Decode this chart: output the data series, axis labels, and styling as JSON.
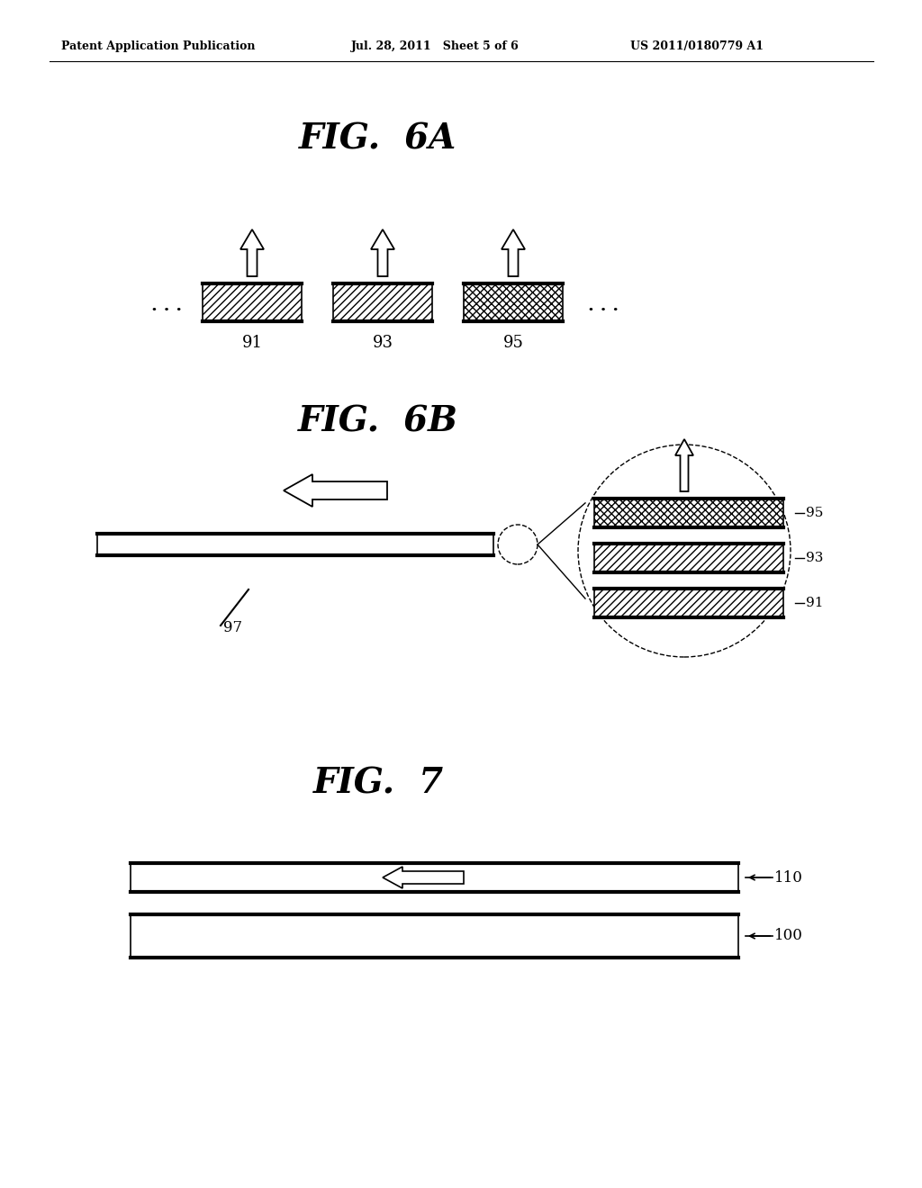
{
  "bg_color": "#ffffff",
  "header_left": "Patent Application Publication",
  "header_mid": "Jul. 28, 2011   Sheet 5 of 6",
  "header_right": "US 2011/0180779 A1",
  "fig6a_title": "FIG.  6A",
  "fig6b_title": "FIG.  6B",
  "fig7_title": "FIG.  7",
  "label_91": "91",
  "label_93": "93",
  "label_95": "95",
  "label_97": "97",
  "label_110": "110",
  "label_100": "100"
}
